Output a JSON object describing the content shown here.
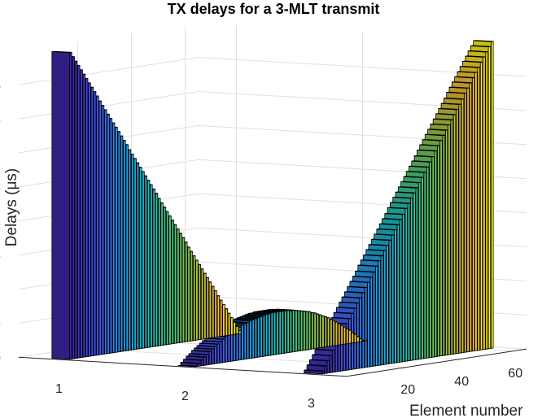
{
  "chart_data": {
    "type": "bar3",
    "title": "TX delays for a 3-MLT transmit",
    "xlabel": "Element number",
    "ylabel": "Delays (μs)",
    "zlim": [
      0,
      4.5
    ],
    "z_ticks": [
      "0",
      "0.5",
      "1",
      "1.5",
      "2",
      "2.5",
      "3",
      "3.5",
      "4"
    ],
    "element_ticks": [
      "20",
      "40",
      "60"
    ],
    "element_range": [
      1,
      64
    ],
    "transmit_ticks": [
      "1",
      "2",
      "3"
    ],
    "colormap": "parula",
    "grid": true,
    "series": [
      {
        "name": "1",
        "description_of_shape": "decreasing",
        "values": [
          4.5,
          4.43,
          4.36,
          4.29,
          4.22,
          4.15,
          4.08,
          4.01,
          3.94,
          3.87,
          3.8,
          3.72,
          3.65,
          3.58,
          3.51,
          3.44,
          3.37,
          3.3,
          3.23,
          3.16,
          3.09,
          3.02,
          2.94,
          2.87,
          2.8,
          2.73,
          2.66,
          2.59,
          2.52,
          2.45,
          2.38,
          2.31,
          2.24,
          2.16,
          2.09,
          2.02,
          1.95,
          1.88,
          1.81,
          1.74,
          1.67,
          1.6,
          1.53,
          1.46,
          1.38,
          1.31,
          1.24,
          1.17,
          1.1,
          1.03,
          0.96,
          0.89,
          0.82,
          0.75,
          0.68,
          0.6,
          0.53,
          0.46,
          0.39,
          0.32,
          0.25,
          0.18,
          0.11,
          0.04
        ]
      },
      {
        "name": "2",
        "values": [
          0.0,
          0.04,
          0.08,
          0.12,
          0.15,
          0.19,
          0.22,
          0.25,
          0.28,
          0.31,
          0.34,
          0.37,
          0.39,
          0.42,
          0.44,
          0.46,
          0.48,
          0.5,
          0.52,
          0.53,
          0.55,
          0.56,
          0.57,
          0.58,
          0.59,
          0.6,
          0.61,
          0.61,
          0.62,
          0.62,
          0.62,
          0.62,
          0.62,
          0.62,
          0.62,
          0.61,
          0.61,
          0.6,
          0.59,
          0.58,
          0.57,
          0.56,
          0.55,
          0.53,
          0.52,
          0.5,
          0.48,
          0.46,
          0.44,
          0.42,
          0.39,
          0.37,
          0.34,
          0.31,
          0.28,
          0.25,
          0.22,
          0.19,
          0.15,
          0.12,
          0.08,
          0.04,
          0.01,
          0.0
        ]
      },
      {
        "name": "3",
        "values": [
          0.04,
          0.11,
          0.18,
          0.25,
          0.32,
          0.39,
          0.46,
          0.53,
          0.6,
          0.68,
          0.75,
          0.82,
          0.89,
          0.96,
          1.03,
          1.1,
          1.17,
          1.24,
          1.31,
          1.38,
          1.46,
          1.53,
          1.6,
          1.67,
          1.74,
          1.81,
          1.88,
          1.95,
          2.02,
          2.09,
          2.16,
          2.24,
          2.31,
          2.38,
          2.45,
          2.52,
          2.59,
          2.66,
          2.73,
          2.8,
          2.87,
          2.94,
          3.02,
          3.09,
          3.16,
          3.23,
          3.3,
          3.37,
          3.44,
          3.51,
          3.58,
          3.65,
          3.72,
          3.8,
          3.87,
          3.94,
          4.01,
          4.08,
          4.15,
          4.22,
          4.29,
          4.36,
          4.43,
          4.5
        ]
      }
    ]
  }
}
